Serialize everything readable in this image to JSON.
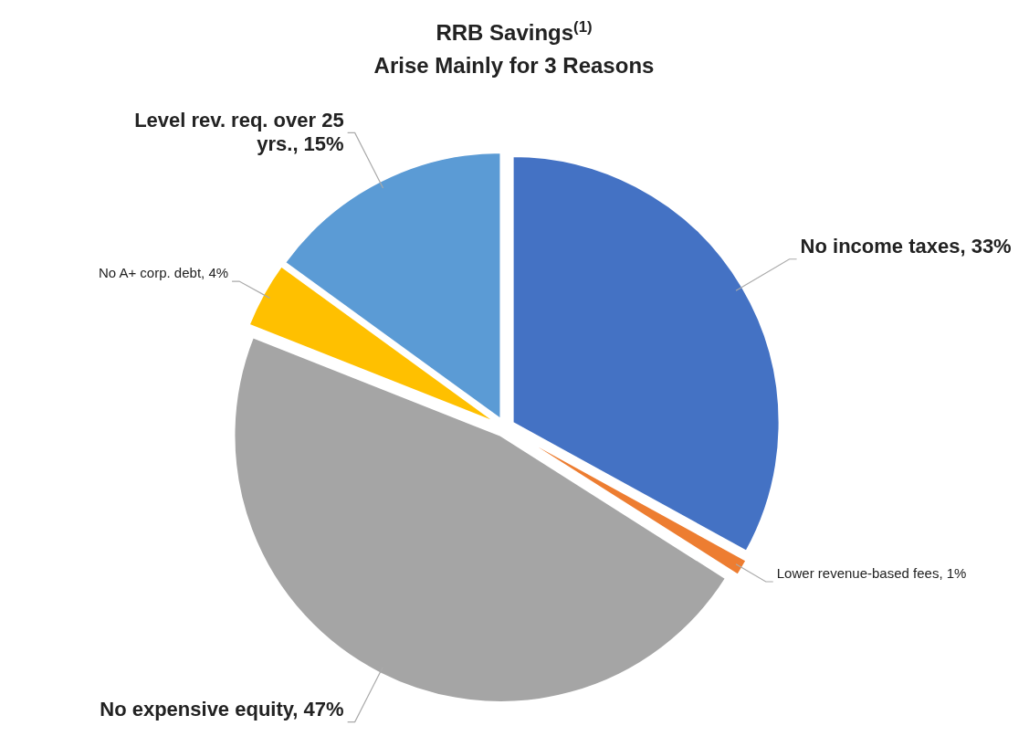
{
  "chart_data": {
    "type": "pie",
    "title": "RRB Savings$^{(1)}$",
    "subtitle": "Arise Mainly for 3 Reasons",
    "categories": [
      "No income taxes",
      "Lower revenue-based fees",
      "No expensive equity",
      "No A+ corp. debt",
      "Level rev. req. over 25 yrs."
    ],
    "values": [
      33,
      1,
      47,
      4,
      15
    ],
    "colors": [
      "#4472c4",
      "#ed7d31",
      "#a5a5a5",
      "#ffc000",
      "#5b9bd5"
    ],
    "value_labels": [
      "33%",
      "1%",
      "47%",
      "4%",
      "15%"
    ]
  }
}
